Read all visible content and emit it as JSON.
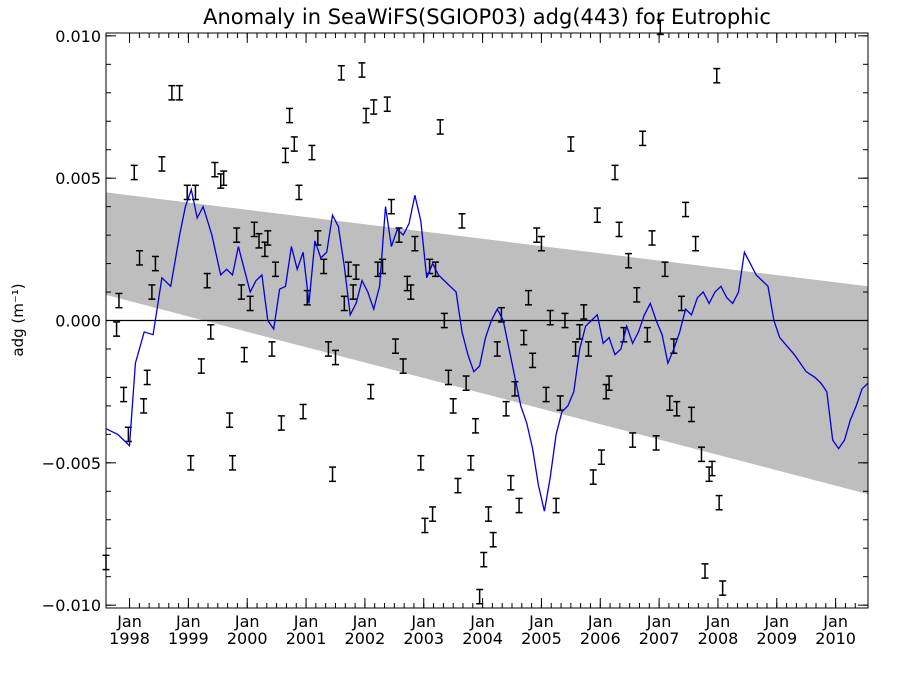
{
  "chart_data": {
    "type": "line",
    "title": "Anomaly in SeaWiFS(SGIOP03) adg(443) for Eutrophic",
    "ylabel": "adg (m⁻¹)",
    "xlabel": "",
    "xlim": [
      1997.6,
      2010.55
    ],
    "ylim": [
      -0.0101,
      0.0101
    ],
    "y_ticks": [
      {
        "value": 0.01,
        "label": "0.010"
      },
      {
        "value": 0.005,
        "label": "0.005"
      },
      {
        "value": 0.0,
        "label": "0.000"
      },
      {
        "value": -0.005,
        "label": "−0.005"
      },
      {
        "value": -0.01,
        "label": "−0.010"
      }
    ],
    "x_ticks": [
      {
        "value": 1998,
        "label": "Jan",
        "year": "1998"
      },
      {
        "value": 1999,
        "label": "Jan",
        "year": "1999"
      },
      {
        "value": 2000,
        "label": "Jan",
        "year": "2000"
      },
      {
        "value": 2001,
        "label": "Jan",
        "year": "2001"
      },
      {
        "value": 2002,
        "label": "Jan",
        "year": "2002"
      },
      {
        "value": 2003,
        "label": "Jan",
        "year": "2003"
      },
      {
        "value": 2004,
        "label": "Jan",
        "year": "2004"
      },
      {
        "value": 2005,
        "label": "Jan",
        "year": "2005"
      },
      {
        "value": 2006,
        "label": "Jan",
        "year": "2006"
      },
      {
        "value": 2007,
        "label": "Jan",
        "year": "2007"
      },
      {
        "value": 2008,
        "label": "Jan",
        "year": "2008"
      },
      {
        "value": 2009,
        "label": "Jan",
        "year": "2009"
      },
      {
        "value": 2010,
        "label": "Jan",
        "year": "2010"
      }
    ],
    "zero_line": 0.0,
    "confidence_band": {
      "color": "#bebebe",
      "upper": [
        [
          1997.6,
          0.0045
        ],
        [
          2010.55,
          0.0012
        ]
      ],
      "lower": [
        [
          1997.6,
          0.0009
        ],
        [
          2010.55,
          -0.0061
        ]
      ]
    },
    "line_series": {
      "color": "#0000dd",
      "x": [
        1997.6,
        1997.8,
        1997.9,
        1998.0,
        1998.1,
        1998.25,
        1998.4,
        1998.55,
        1998.7,
        1998.85,
        1998.95,
        1999.05,
        1999.15,
        1999.25,
        1999.4,
        1999.55,
        1999.65,
        1999.75,
        1999.85,
        1999.95,
        2000.05,
        2000.15,
        2000.25,
        2000.35,
        2000.45,
        2000.55,
        2000.65,
        2000.75,
        2000.85,
        2000.95,
        2001.05,
        2001.15,
        2001.25,
        2001.35,
        2001.45,
        2001.55,
        2001.65,
        2001.75,
        2001.85,
        2001.95,
        2002.05,
        2002.15,
        2002.25,
        2002.35,
        2002.45,
        2002.55,
        2002.65,
        2002.75,
        2002.85,
        2002.95,
        2003.05,
        2003.15,
        2003.25,
        2003.35,
        2003.45,
        2003.55,
        2003.65,
        2003.75,
        2003.85,
        2003.95,
        2004.05,
        2004.15,
        2004.25,
        2004.35,
        2004.45,
        2004.55,
        2004.65,
        2004.75,
        2004.85,
        2004.95,
        2005.05,
        2005.15,
        2005.25,
        2005.35,
        2005.45,
        2005.55,
        2005.65,
        2005.75,
        2005.85,
        2005.95,
        2006.05,
        2006.15,
        2006.25,
        2006.35,
        2006.45,
        2006.55,
        2006.65,
        2006.75,
        2006.85,
        2006.95,
        2007.05,
        2007.15,
        2007.25,
        2007.35,
        2007.45,
        2007.55,
        2007.65,
        2007.75,
        2007.85,
        2007.95,
        2008.05,
        2008.15,
        2008.25,
        2008.35,
        2008.45,
        2008.55,
        2008.65,
        2008.75,
        2008.85,
        2008.95,
        2009.05,
        2009.3,
        2009.5,
        2009.65,
        2009.75,
        2009.85,
        2009.95,
        2010.05,
        2010.15,
        2010.25,
        2010.35,
        2010.45,
        2010.55
      ],
      "y": [
        -0.0038,
        -0.004,
        -0.0042,
        -0.0044,
        -0.0015,
        -0.0004,
        -0.0005,
        0.0015,
        0.0012,
        0.003,
        0.004,
        0.0046,
        0.0036,
        0.004,
        0.003,
        0.0016,
        0.0018,
        0.0016,
        0.0026,
        0.0018,
        0.001,
        0.0014,
        0.0016,
        0.0,
        -0.0003,
        0.0011,
        0.0012,
        0.0026,
        0.0018,
        0.0024,
        0.0006,
        0.0028,
        0.0022,
        0.0024,
        0.0037,
        0.0033,
        0.0019,
        0.0002,
        0.0006,
        0.0014,
        0.001,
        0.0004,
        0.0012,
        0.004,
        0.0026,
        0.0032,
        0.003,
        0.0034,
        0.0044,
        0.0035,
        0.0015,
        0.002,
        0.0016,
        0.0014,
        0.0012,
        0.001,
        -0.0004,
        -0.0012,
        -0.0018,
        -0.0016,
        -0.0006,
        0.0,
        0.0004,
        0.0,
        -0.001,
        -0.002,
        -0.003,
        -0.0036,
        -0.0045,
        -0.0058,
        -0.0067,
        -0.0055,
        -0.004,
        -0.0032,
        -0.003,
        -0.0025,
        -0.001,
        -0.0002,
        0.0,
        0.0002,
        -0.0008,
        -0.0006,
        -0.0012,
        -0.001,
        -0.0002,
        -0.0008,
        -0.0004,
        0.0002,
        0.0006,
        0.0,
        -0.0005,
        -0.0015,
        -0.001,
        -0.0004,
        0.0004,
        0.0002,
        0.0008,
        0.001,
        0.0006,
        0.001,
        0.0012,
        0.0008,
        0.0006,
        0.001,
        0.0024,
        0.002,
        0.0016,
        0.0014,
        0.0012,
        0.0,
        -0.0006,
        -0.0012,
        -0.0018,
        -0.002,
        -0.0022,
        -0.0025,
        -0.0042,
        -0.0045,
        -0.0042,
        -0.0035,
        -0.003,
        -0.0024,
        -0.0022
      ]
    },
    "error_bars": {
      "color": "#000000",
      "half_width": 0.00025,
      "points": [
        [
          1997.6,
          -0.0085
        ],
        [
          1997.78,
          -0.0003
        ],
        [
          1997.82,
          0.0007
        ],
        [
          1997.9,
          -0.0026
        ],
        [
          1997.98,
          -0.004
        ],
        [
          1998.08,
          0.0052
        ],
        [
          1998.17,
          0.0022
        ],
        [
          1998.24,
          -0.003
        ],
        [
          1998.3,
          -0.002
        ],
        [
          1998.38,
          0.001
        ],
        [
          1998.44,
          0.002
        ],
        [
          1998.55,
          0.0055
        ],
        [
          1998.72,
          0.008
        ],
        [
          1998.85,
          0.008
        ],
        [
          1998.98,
          0.0045
        ],
        [
          1999.04,
          -0.005
        ],
        [
          1999.12,
          0.0045
        ],
        [
          1999.22,
          -0.0016
        ],
        [
          1999.32,
          0.0014
        ],
        [
          1999.38,
          -0.0004
        ],
        [
          1999.45,
          0.0053
        ],
        [
          1999.55,
          0.0049
        ],
        [
          1999.6,
          0.005
        ],
        [
          1999.7,
          -0.0035
        ],
        [
          1999.75,
          -0.005
        ],
        [
          1999.82,
          0.003
        ],
        [
          1999.9,
          0.001
        ],
        [
          1999.95,
          -0.0012
        ],
        [
          2000.05,
          0.0006
        ],
        [
          2000.12,
          0.0032
        ],
        [
          2000.2,
          0.0028
        ],
        [
          2000.3,
          0.0025
        ],
        [
          2000.35,
          0.0029
        ],
        [
          2000.42,
          -0.001
        ],
        [
          2000.48,
          0.0018
        ],
        [
          2000.58,
          -0.0036
        ],
        [
          2000.65,
          0.0058
        ],
        [
          2000.72,
          0.0072
        ],
        [
          2000.8,
          0.0062
        ],
        [
          2000.88,
          0.0045
        ],
        [
          2000.95,
          -0.0032
        ],
        [
          2001.02,
          0.0008
        ],
        [
          2001.1,
          0.0059
        ],
        [
          2001.2,
          0.0029
        ],
        [
          2001.3,
          0.0019
        ],
        [
          2001.38,
          -0.001
        ],
        [
          2001.45,
          -0.0054
        ],
        [
          2001.5,
          -0.0013
        ],
        [
          2001.6,
          0.0087
        ],
        [
          2001.65,
          0.0006
        ],
        [
          2001.72,
          0.0018
        ],
        [
          2001.8,
          0.001
        ],
        [
          2001.85,
          0.0017
        ],
        [
          2001.95,
          0.0088
        ],
        [
          2002.02,
          0.0072
        ],
        [
          2002.1,
          -0.0025
        ],
        [
          2002.15,
          0.0075
        ],
        [
          2002.22,
          0.0018
        ],
        [
          2002.3,
          0.0019
        ],
        [
          2002.38,
          0.0076
        ],
        [
          2002.45,
          0.004
        ],
        [
          2002.52,
          -0.0009
        ],
        [
          2002.58,
          0.003
        ],
        [
          2002.65,
          -0.0016
        ],
        [
          2002.72,
          0.0013
        ],
        [
          2002.78,
          0.001
        ],
        [
          2002.85,
          0.0027
        ],
        [
          2002.95,
          -0.005
        ],
        [
          2003.02,
          -0.0072
        ],
        [
          2003.1,
          0.0019
        ],
        [
          2003.15,
          -0.0068
        ],
        [
          2003.2,
          0.0018
        ],
        [
          2003.28,
          0.0068
        ],
        [
          2003.35,
          0.0
        ],
        [
          2003.42,
          -0.002
        ],
        [
          2003.5,
          -0.003
        ],
        [
          2003.58,
          -0.0058
        ],
        [
          2003.65,
          0.0035
        ],
        [
          2003.72,
          -0.0022
        ],
        [
          2003.8,
          -0.005
        ],
        [
          2003.88,
          -0.0037
        ],
        [
          2003.95,
          -0.0097
        ],
        [
          2004.02,
          -0.0084
        ],
        [
          2004.1,
          -0.0068
        ],
        [
          2004.18,
          -0.0077
        ],
        [
          2004.25,
          -0.001
        ],
        [
          2004.32,
          0.0002
        ],
        [
          2004.4,
          -0.0031
        ],
        [
          2004.48,
          -0.0057
        ],
        [
          2004.55,
          -0.0024
        ],
        [
          2004.62,
          -0.0065
        ],
        [
          2004.7,
          -0.0006
        ],
        [
          2004.78,
          0.0008
        ],
        [
          2004.85,
          -0.0014
        ],
        [
          2004.92,
          0.003
        ],
        [
          2005.0,
          0.0027
        ],
        [
          2005.08,
          -0.0026
        ],
        [
          2005.15,
          0.0001
        ],
        [
          2005.25,
          -0.0065
        ],
        [
          2005.32,
          -0.0029
        ],
        [
          2005.4,
          0.0
        ],
        [
          2005.5,
          0.0062
        ],
        [
          2005.58,
          -0.001
        ],
        [
          2005.65,
          -0.0004
        ],
        [
          2005.72,
          0.0003
        ],
        [
          2005.8,
          -0.001
        ],
        [
          2005.88,
          -0.0055
        ],
        [
          2005.95,
          0.0037
        ],
        [
          2006.02,
          -0.0048
        ],
        [
          2006.1,
          -0.0025
        ],
        [
          2006.15,
          -0.0022
        ],
        [
          2006.25,
          0.0052
        ],
        [
          2006.32,
          0.0032
        ],
        [
          2006.4,
          -0.0005
        ],
        [
          2006.48,
          0.0021
        ],
        [
          2006.55,
          -0.0042
        ],
        [
          2006.62,
          0.0009
        ],
        [
          2006.72,
          0.0064
        ],
        [
          2006.8,
          -0.0005
        ],
        [
          2006.88,
          0.0029
        ],
        [
          2006.95,
          -0.0043
        ],
        [
          2007.02,
          0.0103
        ],
        [
          2007.1,
          0.0018
        ],
        [
          2007.18,
          -0.0029
        ],
        [
          2007.25,
          -0.0009
        ],
        [
          2007.3,
          -0.0031
        ],
        [
          2007.38,
          0.0006
        ],
        [
          2007.45,
          0.0039
        ],
        [
          2007.55,
          -0.0033
        ],
        [
          2007.62,
          0.0027
        ],
        [
          2007.72,
          -0.0047
        ],
        [
          2007.78,
          -0.0088
        ],
        [
          2007.85,
          -0.0054
        ],
        [
          2007.9,
          -0.0052
        ],
        [
          2007.98,
          0.0086
        ],
        [
          2008.02,
          -0.0064
        ],
        [
          2008.08,
          -0.0094
        ]
      ]
    }
  }
}
